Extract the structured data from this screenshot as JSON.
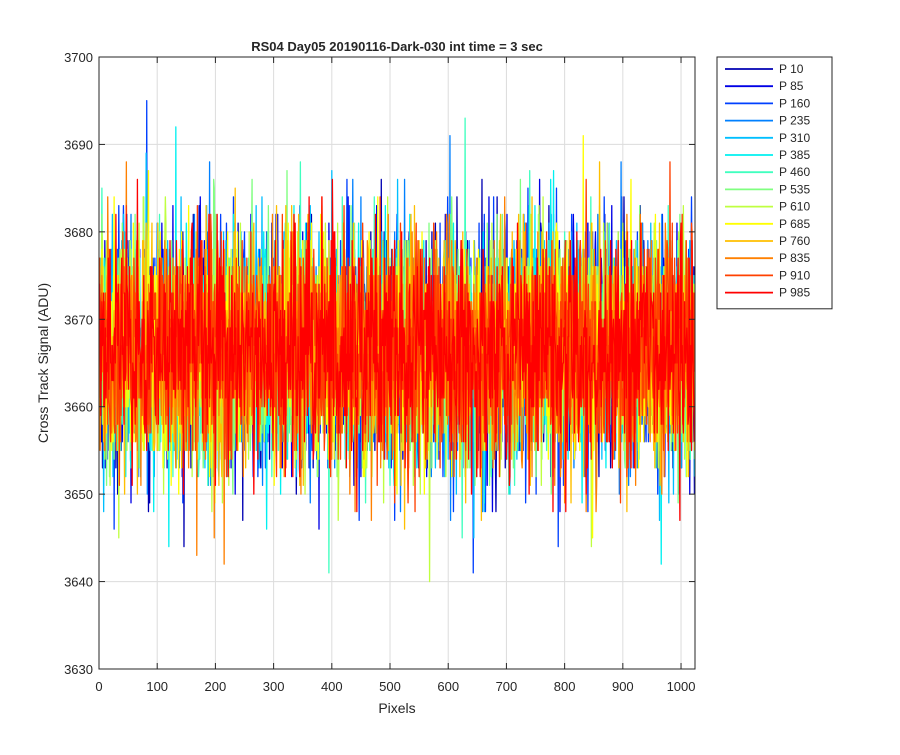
{
  "chart_data": {
    "type": "line",
    "title": "RS04 Day05 20190116-Dark-030 int time = 3 sec",
    "xlabel": "Pixels",
    "ylabel": "Cross Track Signal (ADU)",
    "xlim": [
      0,
      1024
    ],
    "ylim": [
      3630,
      3700
    ],
    "x_ticks": [
      0,
      100,
      200,
      300,
      400,
      500,
      600,
      700,
      800,
      900,
      1000
    ],
    "y_ticks": [
      3630,
      3640,
      3650,
      3660,
      3670,
      3680,
      3690,
      3700
    ],
    "grid": true,
    "legend_position": "outside-right",
    "n_points": 1024,
    "series": [
      {
        "name": "P 10",
        "color": "#0000b3",
        "mean": 3666.5,
        "std": 6.5
      },
      {
        "name": "P 85",
        "color": "#0000e6",
        "mean": 3666.5,
        "std": 6.5
      },
      {
        "name": "P 160",
        "color": "#0040ff",
        "mean": 3666.5,
        "std": 6.5
      },
      {
        "name": "P 235",
        "color": "#0080ff",
        "mean": 3666.5,
        "std": 6.5
      },
      {
        "name": "P 310",
        "color": "#00bfff",
        "mean": 3666.5,
        "std": 6.5
      },
      {
        "name": "P 385",
        "color": "#00f0f0",
        "mean": 3666.5,
        "std": 6.5
      },
      {
        "name": "P 460",
        "color": "#40ffbf",
        "mean": 3666.5,
        "std": 6.5
      },
      {
        "name": "P 535",
        "color": "#80ff80",
        "mean": 3666.5,
        "std": 6.5
      },
      {
        "name": "P 610",
        "color": "#bfff40",
        "mean": 3666.5,
        "std": 6.5
      },
      {
        "name": "P 685",
        "color": "#ffff00",
        "mean": 3666.5,
        "std": 6.5
      },
      {
        "name": "P 760",
        "color": "#ffbf00",
        "mean": 3666.5,
        "std": 6.5
      },
      {
        "name": "P 835",
        "color": "#ff8000",
        "mean": 3666.5,
        "std": 6.5
      },
      {
        "name": "P 910",
        "color": "#ff4000",
        "mean": 3666.5,
        "std": 6.5
      },
      {
        "name": "P 985",
        "color": "#ff0000",
        "mean": 3666.5,
        "std": 6.5
      }
    ]
  }
}
